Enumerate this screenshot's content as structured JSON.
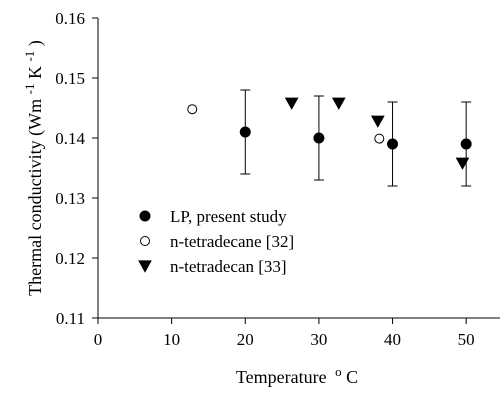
{
  "chart_data": {
    "type": "scatter",
    "xlabel": "Temperature",
    "xlabel_unit": "C",
    "xlabel_unit_sup": "o",
    "ylabel": "Thermal conductivity (Wm",
    "ylabel_sup1": "-1",
    "ylabel_mid": "K",
    "ylabel_sup2": "-1",
    "ylabel_end": ")",
    "xlim": [
      0,
      55
    ],
    "ylim": [
      0.11,
      0.16
    ],
    "x_ticks": [
      0,
      10,
      20,
      30,
      40,
      50
    ],
    "x_tick_labels": [
      "0",
      "10",
      "20",
      "30",
      "40",
      "50"
    ],
    "y_ticks": [
      0.11,
      0.12,
      0.13,
      0.14,
      0.15,
      0.16
    ],
    "y_tick_labels": [
      "0.11",
      "0.12",
      "0.13",
      "0.14",
      "0.15",
      "0.16"
    ],
    "grid": false,
    "legend_position": "lower-left",
    "series": [
      {
        "name": "LP, present study",
        "marker": "filled-circle",
        "color": "#000000",
        "x": [
          20,
          30,
          40,
          50
        ],
        "y": [
          0.141,
          0.14,
          0.139,
          0.139
        ],
        "error_low": [
          0.134,
          0.133,
          0.132,
          0.132
        ],
        "error_high": [
          0.148,
          0.147,
          0.146,
          0.146
        ]
      },
      {
        "name": "n-tetradecane [32]",
        "marker": "open-circle",
        "color": "#000000",
        "x": [
          12.8,
          38.2
        ],
        "y": [
          0.1448,
          0.1399
        ]
      },
      {
        "name": "n-tetradecan [33]",
        "marker": "filled-triangle-down",
        "color": "#000000",
        "x": [
          26.3,
          32.7,
          38.0,
          49.5
        ],
        "y": [
          0.1458,
          0.1458,
          0.1428,
          0.1358
        ]
      }
    ]
  }
}
